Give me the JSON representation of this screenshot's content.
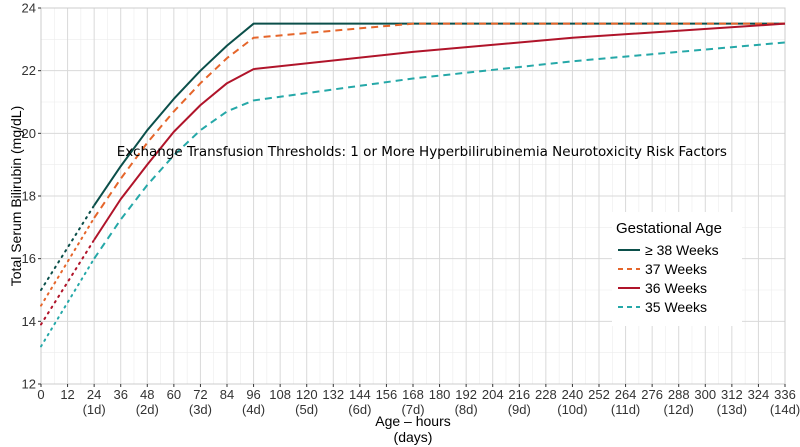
{
  "chart_data": {
    "type": "line",
    "title": "",
    "annotation": "Exchange Transfusion Thresholds:  1 or More Hyperbilirubinemia Neurotoxicity Risk Factors",
    "xlabel_line1": "Age – hours",
    "xlabel_line2": "(days)",
    "ylabel": "Total Serum Bilirubin (mg/dL)",
    "xlim": [
      0,
      336
    ],
    "ylim": [
      12,
      24
    ],
    "grid": true,
    "x_ticks": [
      0,
      12,
      24,
      36,
      48,
      60,
      72,
      84,
      96,
      108,
      120,
      132,
      144,
      156,
      168,
      180,
      192,
      204,
      216,
      228,
      240,
      252,
      264,
      276,
      288,
      300,
      312,
      324,
      336
    ],
    "y_ticks": [
      12,
      14,
      16,
      18,
      20,
      22,
      24
    ],
    "day_labels": [
      {
        "x": 24,
        "label": "(1d)"
      },
      {
        "x": 48,
        "label": "(2d)"
      },
      {
        "x": 72,
        "label": "(3d)"
      },
      {
        "x": 96,
        "label": "(4d)"
      },
      {
        "x": 120,
        "label": "(5d)"
      },
      {
        "x": 144,
        "label": "(6d)"
      },
      {
        "x": 168,
        "label": "(7d)"
      },
      {
        "x": 192,
        "label": "(8d)"
      },
      {
        "x": 216,
        "label": "(9d)"
      },
      {
        "x": 240,
        "label": "(10d)"
      },
      {
        "x": 264,
        "label": "(11d)"
      },
      {
        "x": 288,
        "label": "(12d)"
      },
      {
        "x": 312,
        "label": "(13d)"
      },
      {
        "x": 336,
        "label": "(14d)"
      }
    ],
    "legend": {
      "title": "Gestational Age",
      "placement": "right-middle"
    },
    "series": [
      {
        "name": "≥ 38 Weeks",
        "color": "#0b4f4a",
        "style": "solid",
        "dotted_segment": [
          [
            0,
            15.0
          ],
          [
            24,
            17.7
          ]
        ],
        "points": [
          [
            24,
            17.7
          ],
          [
            36,
            18.95
          ],
          [
            48,
            20.1
          ],
          [
            60,
            21.1
          ],
          [
            72,
            22.0
          ],
          [
            84,
            22.8
          ],
          [
            96,
            23.5
          ],
          [
            120,
            23.5
          ],
          [
            168,
            23.5
          ],
          [
            240,
            23.5
          ],
          [
            336,
            23.5
          ]
        ]
      },
      {
        "name": "37 Weeks",
        "color": "#e5652a",
        "style": "dashed",
        "dotted_segment": [
          [
            0,
            14.5
          ],
          [
            24,
            17.3
          ]
        ],
        "points": [
          [
            24,
            17.3
          ],
          [
            36,
            18.55
          ],
          [
            48,
            19.7
          ],
          [
            60,
            20.7
          ],
          [
            72,
            21.6
          ],
          [
            84,
            22.4
          ],
          [
            96,
            23.05
          ],
          [
            120,
            23.2
          ],
          [
            168,
            23.5
          ],
          [
            240,
            23.5
          ],
          [
            336,
            23.5
          ]
        ]
      },
      {
        "name": "36 Weeks",
        "color": "#b0142a",
        "style": "solid",
        "dotted_segment": [
          [
            0,
            13.9
          ],
          [
            24,
            16.6
          ]
        ],
        "points": [
          [
            24,
            16.6
          ],
          [
            36,
            17.9
          ],
          [
            48,
            19.0
          ],
          [
            60,
            20.05
          ],
          [
            72,
            20.9
          ],
          [
            84,
            21.6
          ],
          [
            96,
            22.05
          ],
          [
            168,
            22.6
          ],
          [
            240,
            23.05
          ],
          [
            336,
            23.5
          ]
        ]
      },
      {
        "name": "35 Weeks",
        "color": "#25a8a8",
        "style": "dashed",
        "dotted_segment": [
          [
            0,
            13.2
          ],
          [
            24,
            16.0
          ]
        ],
        "points": [
          [
            24,
            16.0
          ],
          [
            36,
            17.25
          ],
          [
            48,
            18.35
          ],
          [
            60,
            19.3
          ],
          [
            72,
            20.1
          ],
          [
            84,
            20.7
          ],
          [
            96,
            21.05
          ],
          [
            168,
            21.75
          ],
          [
            240,
            22.3
          ],
          [
            336,
            22.9
          ]
        ]
      }
    ]
  }
}
